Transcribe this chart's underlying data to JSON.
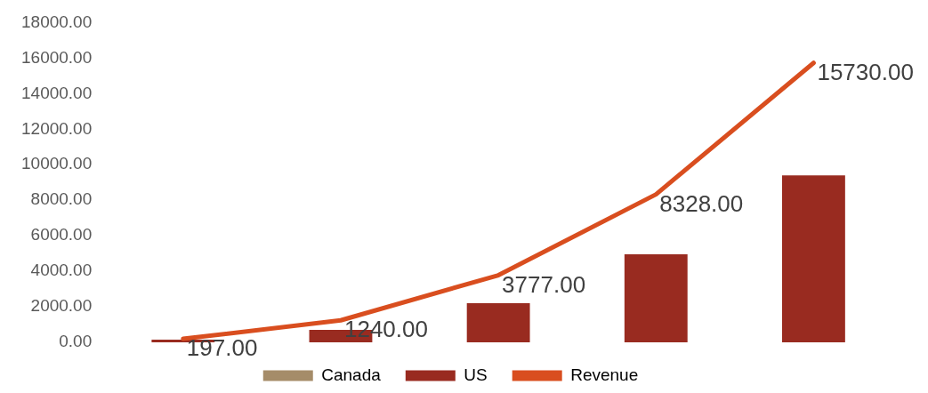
{
  "chart_data": {
    "type": "bar",
    "stacked": true,
    "categories": [
      null,
      null,
      null,
      null,
      null
    ],
    "series": [
      {
        "name": "Canada",
        "color": "#a58c69",
        "values": [
          0,
          0,
          0,
          0,
          0
        ]
      },
      {
        "name": "US",
        "color": "#992b20",
        "values": [
          150,
          700,
          2200,
          4950,
          9400
        ]
      },
      {
        "name": "Revenue",
        "type": "line",
        "color": "#d94e1f",
        "values": [
          197,
          1240,
          3777,
          8328,
          15730
        ],
        "value_labels": [
          "197.00",
          "1240.00",
          "3777.00",
          "8328.00",
          "15730.00"
        ]
      }
    ],
    "ylim": [
      0,
      18000
    ],
    "yticks": [
      {
        "value": 0,
        "label": "0.00"
      },
      {
        "value": 2000,
        "label": "2000.00"
      },
      {
        "value": 4000,
        "label": "4000.00"
      },
      {
        "value": 6000,
        "label": "6000.00"
      },
      {
        "value": 8000,
        "label": "8000.00"
      },
      {
        "value": 10000,
        "label": "10000.00"
      },
      {
        "value": 12000,
        "label": "12000.00"
      },
      {
        "value": 14000,
        "label": "14000.00"
      },
      {
        "value": 16000,
        "label": "16000.00"
      },
      {
        "value": 18000,
        "label": "18000.00"
      }
    ],
    "grid": false,
    "legend": "bottom",
    "marker": "none"
  }
}
